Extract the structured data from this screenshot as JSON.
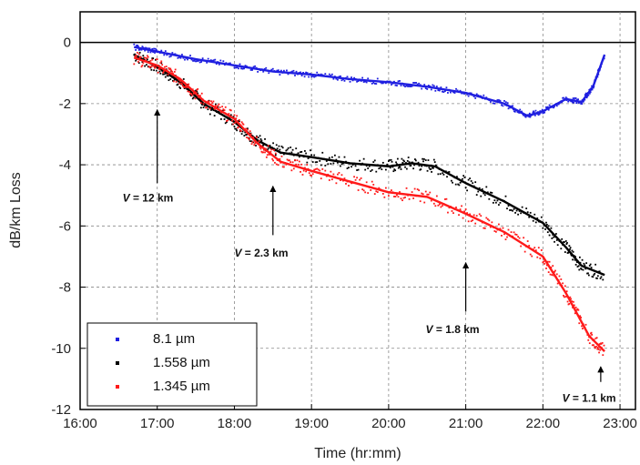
{
  "chart_data": {
    "type": "scatter",
    "title": "",
    "xlabel": "Time (hr:mm)",
    "ylabel": "dB/km Loss",
    "x_ticks": [
      "16:00",
      "17:00",
      "18:00",
      "19:00",
      "20:00",
      "21:00",
      "22:00",
      "23:00"
    ],
    "x_tick_hours": [
      16,
      17,
      18,
      19,
      20,
      21,
      22,
      23
    ],
    "xlim_hours": [
      16,
      23.2
    ],
    "y_ticks": [
      0,
      -2,
      -4,
      -6,
      -8,
      -10,
      -12
    ],
    "ylim": [
      -12,
      1
    ],
    "grid": true,
    "legend_position": "bottom-left",
    "series": [
      {
        "name": "8.1 µm",
        "color": "#1f1fe0",
        "points": [
          [
            16.7,
            -0.15
          ],
          [
            17.0,
            -0.3
          ],
          [
            17.5,
            -0.55
          ],
          [
            18.0,
            -0.75
          ],
          [
            18.5,
            -0.95
          ],
          [
            19.0,
            -1.05
          ],
          [
            19.5,
            -1.2
          ],
          [
            20.0,
            -1.3
          ],
          [
            20.5,
            -1.45
          ],
          [
            21.0,
            -1.65
          ],
          [
            21.5,
            -2.0
          ],
          [
            21.8,
            -2.4
          ],
          [
            22.0,
            -2.25
          ],
          [
            22.3,
            -1.85
          ],
          [
            22.5,
            -1.95
          ],
          [
            22.65,
            -1.45
          ],
          [
            22.8,
            -0.4
          ]
        ]
      },
      {
        "name": "1.558 µm",
        "color": "#000000",
        "points": [
          [
            16.7,
            -0.4
          ],
          [
            17.0,
            -0.8
          ],
          [
            17.3,
            -1.3
          ],
          [
            17.6,
            -2.0
          ],
          [
            18.0,
            -2.6
          ],
          [
            18.3,
            -3.2
          ],
          [
            18.6,
            -3.6
          ],
          [
            19.0,
            -3.75
          ],
          [
            19.5,
            -3.95
          ],
          [
            20.0,
            -4.05
          ],
          [
            20.3,
            -3.95
          ],
          [
            20.6,
            -4.05
          ],
          [
            21.0,
            -4.6
          ],
          [
            21.5,
            -5.2
          ],
          [
            22.0,
            -5.9
          ],
          [
            22.3,
            -6.7
          ],
          [
            22.5,
            -7.3
          ],
          [
            22.8,
            -7.6
          ]
        ]
      },
      {
        "name": "1.345 µm",
        "color": "#ff1a1a",
        "points": [
          [
            16.7,
            -0.5
          ],
          [
            17.0,
            -0.75
          ],
          [
            17.3,
            -1.2
          ],
          [
            17.6,
            -1.9
          ],
          [
            18.0,
            -2.5
          ],
          [
            18.3,
            -3.3
          ],
          [
            18.6,
            -3.9
          ],
          [
            19.0,
            -4.2
          ],
          [
            19.5,
            -4.55
          ],
          [
            20.0,
            -4.9
          ],
          [
            20.5,
            -5.05
          ],
          [
            21.0,
            -5.6
          ],
          [
            21.5,
            -6.2
          ],
          [
            22.0,
            -7.0
          ],
          [
            22.3,
            -8.2
          ],
          [
            22.6,
            -9.6
          ],
          [
            22.8,
            -10.1
          ]
        ]
      }
    ],
    "annotations": [
      {
        "label": "V = 12 km",
        "italic": "V",
        "rest": " = 12 km",
        "arrow_x": 17.0,
        "arrow_from_y": -4.6,
        "arrow_to_y": -2.2,
        "text_x": 16.55,
        "text_y": -5.2
      },
      {
        "label": "V = 2.3 km",
        "italic": "V",
        "rest": " = 2.3 km",
        "arrow_x": 18.5,
        "arrow_from_y": -6.3,
        "arrow_to_y": -4.7,
        "text_x": 18.0,
        "text_y": -7.0
      },
      {
        "label": "V = 1.8 km",
        "italic": "V",
        "rest": " = 1.8 km",
        "arrow_x": 21.0,
        "arrow_from_y": -8.8,
        "arrow_to_y": -7.2,
        "text_x": 20.48,
        "text_y": -9.5
      },
      {
        "label": "V = 1.1 km",
        "italic": "V",
        "rest": " = 1.1 km",
        "arrow_x": 22.75,
        "arrow_from_y": -11.1,
        "arrow_to_y": -10.6,
        "text_x": 22.25,
        "text_y": -11.75
      }
    ]
  }
}
